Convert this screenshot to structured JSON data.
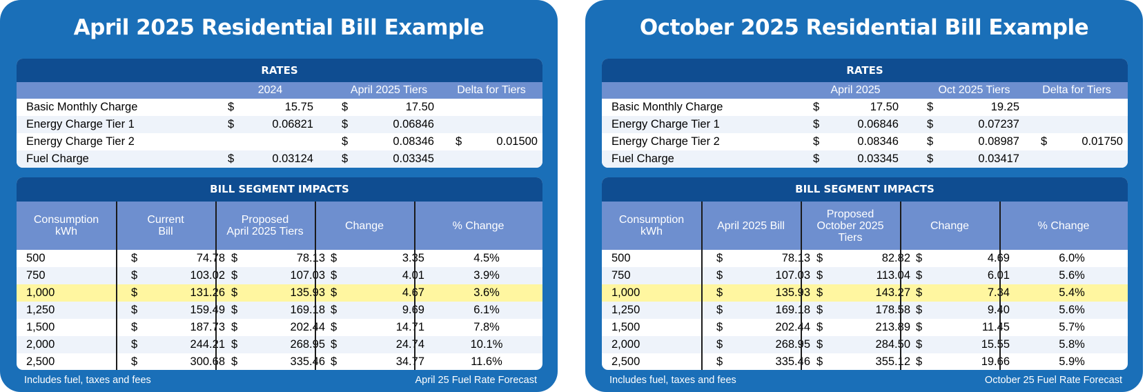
{
  "cards": [
    {
      "title": "April 2025 Residential Bill Example",
      "rates": {
        "heading": "RATES",
        "columns": [
          "2024",
          "April 2025 Tiers",
          "Delta for Tiers"
        ],
        "rows": [
          {
            "label": "Basic Monthly Charge",
            "c1": [
              "$",
              "15.75"
            ],
            "c2": [
              "$",
              "17.50"
            ],
            "c3": [
              "",
              ""
            ]
          },
          {
            "label": "Energy Charge Tier 1",
            "c1": [
              "$",
              "0.06821"
            ],
            "c2": [
              "$",
              "0.06846"
            ],
            "c3": [
              "",
              ""
            ]
          },
          {
            "label": "Energy Charge Tier 2",
            "c1": [
              "",
              ""
            ],
            "c2": [
              "$",
              "0.08346"
            ],
            "c3": [
              "$",
              "0.01500"
            ]
          },
          {
            "label": "Fuel Charge",
            "c1": [
              "$",
              "0.03124"
            ],
            "c2": [
              "$",
              "0.03345"
            ],
            "c3": [
              "",
              ""
            ]
          }
        ]
      },
      "segments": {
        "heading": "BILL SEGMENT IMPACTS",
        "columns": [
          "Consumption\nkWh",
          "Current\nBill",
          "Proposed\nApril 2025 Tiers",
          "Change",
          "% Change"
        ],
        "rows": [
          {
            "kwh": "500",
            "c1": [
              "$",
              "74.78"
            ],
            "c2": [
              "$",
              "78.13"
            ],
            "c3": [
              "$",
              "3.35"
            ],
            "pct": "4.5%"
          },
          {
            "kwh": "750",
            "c1": [
              "$",
              "103.02"
            ],
            "c2": [
              "$",
              "107.03"
            ],
            "c3": [
              "$",
              "4.01"
            ],
            "pct": "3.9%"
          },
          {
            "kwh": "1,000",
            "c1": [
              "$",
              "131.26"
            ],
            "c2": [
              "$",
              "135.93"
            ],
            "c3": [
              "$",
              "4.67"
            ],
            "pct": "3.6%"
          },
          {
            "kwh": "1,250",
            "c1": [
              "$",
              "159.49"
            ],
            "c2": [
              "$",
              "169.18"
            ],
            "c3": [
              "$",
              "9.69"
            ],
            "pct": "6.1%"
          },
          {
            "kwh": "1,500",
            "c1": [
              "$",
              "187.73"
            ],
            "c2": [
              "$",
              "202.44"
            ],
            "c3": [
              "$",
              "14.71"
            ],
            "pct": "7.8%"
          },
          {
            "kwh": "2,000",
            "c1": [
              "$",
              "244.21"
            ],
            "c2": [
              "$",
              "268.95"
            ],
            "c3": [
              "$",
              "24.74"
            ],
            "pct": "10.1%"
          },
          {
            "kwh": "2,500",
            "c1": [
              "$",
              "300.68"
            ],
            "c2": [
              "$",
              "335.46"
            ],
            "c3": [
              "$",
              "34.77"
            ],
            "pct": "11.6%"
          }
        ]
      },
      "footer_left": "Includes fuel, taxes and fees",
      "footer_right": "April 25 Fuel Rate Forecast"
    },
    {
      "title": "October 2025 Residential Bill Example",
      "rates": {
        "heading": "RATES",
        "columns": [
          "April 2025",
          "Oct 2025 Tiers",
          "Delta for Tiers"
        ],
        "rows": [
          {
            "label": "Basic Monthly Charge",
            "c1": [
              "$",
              "17.50"
            ],
            "c2": [
              "$",
              "19.25"
            ],
            "c3": [
              "",
              ""
            ]
          },
          {
            "label": "Energy Charge Tier 1",
            "c1": [
              "$",
              "0.06846"
            ],
            "c2": [
              "$",
              "0.07237"
            ],
            "c3": [
              "",
              ""
            ]
          },
          {
            "label": "Energy Charge Tier 2",
            "c1": [
              "$",
              "0.08346"
            ],
            "c2": [
              "$",
              "0.08987"
            ],
            "c3": [
              "$",
              "0.01750"
            ]
          },
          {
            "label": "Fuel Charge",
            "c1": [
              "$",
              "0.03345"
            ],
            "c2": [
              "$",
              "0.03417"
            ],
            "c3": [
              "",
              ""
            ]
          }
        ]
      },
      "segments": {
        "heading": "BILL SEGMENT IMPACTS",
        "columns": [
          "Consumption\nkWh",
          "April 2025 Bill",
          "Proposed\nOctober 2025\nTiers",
          "Change",
          "% Change"
        ],
        "rows": [
          {
            "kwh": "500",
            "c1": [
              "$",
              "78.13"
            ],
            "c2": [
              "$",
              "82.82"
            ],
            "c3": [
              "$",
              "4.69"
            ],
            "pct": "6.0%"
          },
          {
            "kwh": "750",
            "c1": [
              "$",
              "107.03"
            ],
            "c2": [
              "$",
              "113.04"
            ],
            "c3": [
              "$",
              "6.01"
            ],
            "pct": "5.6%"
          },
          {
            "kwh": "1,000",
            "c1": [
              "$",
              "135.93"
            ],
            "c2": [
              "$",
              "143.27"
            ],
            "c3": [
              "$",
              "7.34"
            ],
            "pct": "5.4%"
          },
          {
            "kwh": "1,250",
            "c1": [
              "$",
              "169.18"
            ],
            "c2": [
              "$",
              "178.58"
            ],
            "c3": [
              "$",
              "9.40"
            ],
            "pct": "5.6%"
          },
          {
            "kwh": "1,500",
            "c1": [
              "$",
              "202.44"
            ],
            "c2": [
              "$",
              "213.89"
            ],
            "c3": [
              "$",
              "11.45"
            ],
            "pct": "5.7%"
          },
          {
            "kwh": "2,000",
            "c1": [
              "$",
              "268.95"
            ],
            "c2": [
              "$",
              "284.50"
            ],
            "c3": [
              "$",
              "15.55"
            ],
            "pct": "5.8%"
          },
          {
            "kwh": "2,500",
            "c1": [
              "$",
              "335.46"
            ],
            "c2": [
              "$",
              "355.12"
            ],
            "c3": [
              "$",
              "19.66"
            ],
            "pct": "5.9%"
          }
        ]
      },
      "footer_left": "Includes fuel, taxes and fees",
      "footer_right": "October 25 Fuel Rate Forecast"
    }
  ],
  "colors": {
    "card": "#1a6fb8",
    "panel_header": "#0f4d91",
    "sub_header": "#6e8fcf",
    "row_alt": "#eef3fa",
    "highlight": "#fff6a0"
  },
  "highlight_row_index": 2
}
